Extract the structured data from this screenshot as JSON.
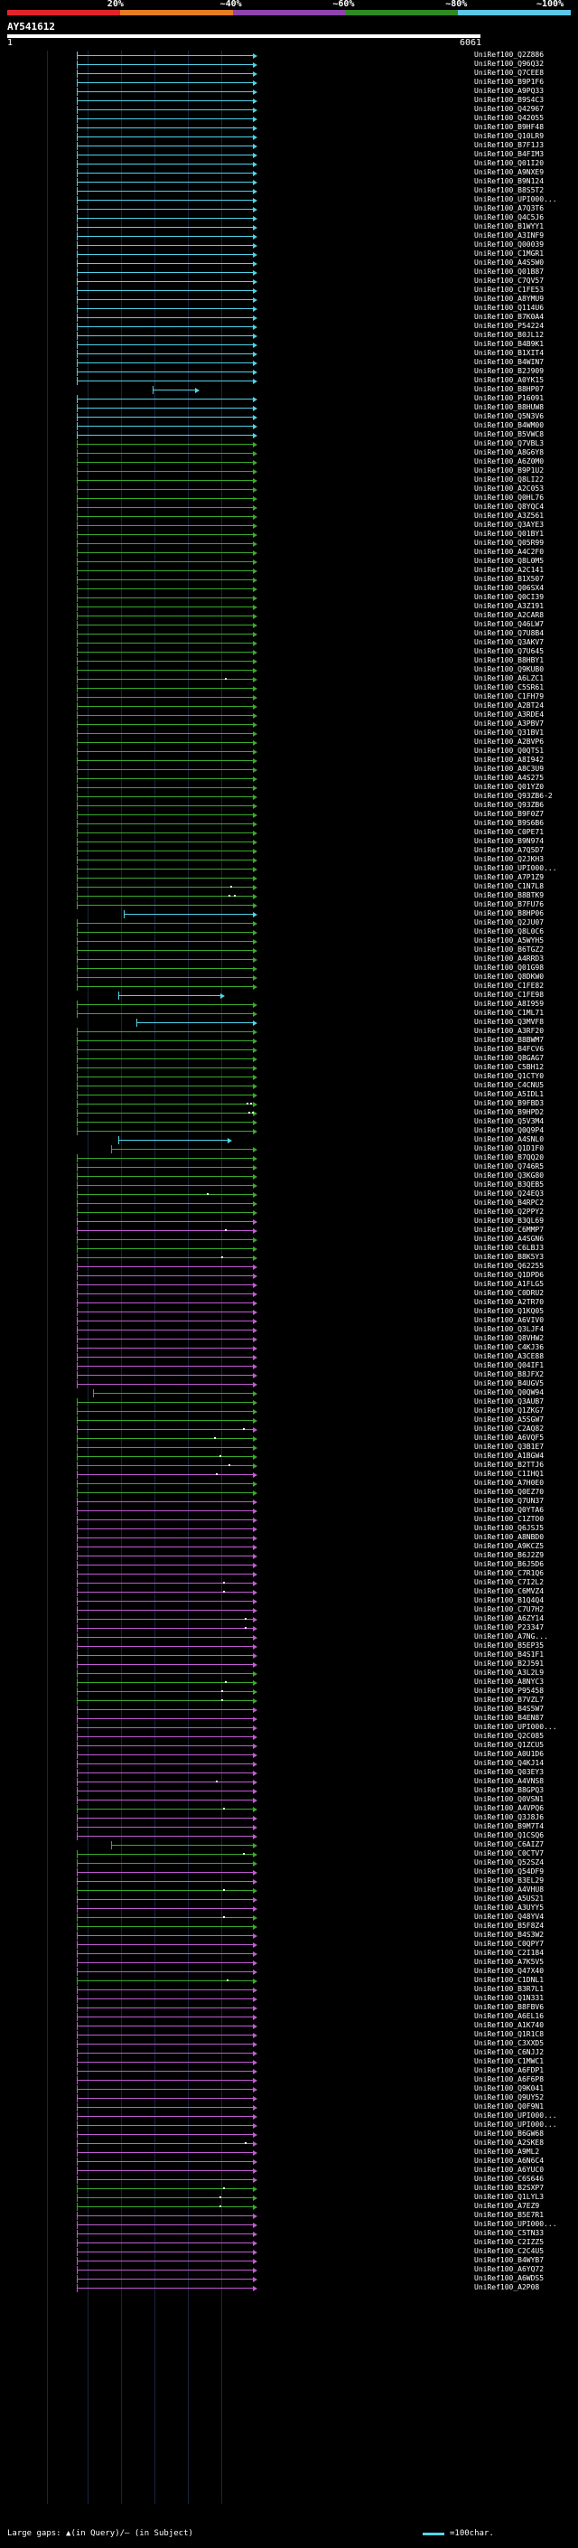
{
  "scale": {
    "labels": [
      "20%",
      "~40%",
      "~60%",
      "~80%",
      "~100%"
    ],
    "colors": [
      "#e3232a",
      "#e67e22",
      "#8e44ad",
      "#2e8b22",
      "#5bc8e6"
    ]
  },
  "query": {
    "id": "AY541612",
    "start": "1",
    "end": "6061"
  },
  "colors": {
    "cyan": "#4fd3e6",
    "green": "#3aab2b",
    "magenta": "#c35bd3"
  },
  "hits": [
    {
      "id": "UniRef100_Q2Z886",
      "c": "cyan"
    },
    {
      "id": "UniRef100_Q96Q32",
      "c": "cyan"
    },
    {
      "id": "UniRef100_Q7CEE8",
      "c": "cyan"
    },
    {
      "id": "UniRef100_B9P1F6",
      "c": "cyan"
    },
    {
      "id": "UniRef100_A9PQ33",
      "c": "cyan"
    },
    {
      "id": "UniRef100_B9S4C3",
      "c": "cyan"
    },
    {
      "id": "UniRef100_Q42967",
      "c": "cyan"
    },
    {
      "id": "UniRef100_Q42055",
      "c": "cyan"
    },
    {
      "id": "UniRef100_B9HF48",
      "c": "cyan"
    },
    {
      "id": "UniRef100_Q10LR9",
      "c": "cyan"
    },
    {
      "id": "UniRef100_B7F1J3",
      "c": "cyan"
    },
    {
      "id": "UniRef100_B4FIM3",
      "c": "cyan"
    },
    {
      "id": "UniRef100_Q01I20",
      "c": "cyan"
    },
    {
      "id": "UniRef100_A9NXE9",
      "c": "cyan"
    },
    {
      "id": "UniRef100_B9N124",
      "c": "cyan"
    },
    {
      "id": "UniRef100_B8S5T2",
      "c": "cyan"
    },
    {
      "id": "UniRef100_UPI000...",
      "c": "cyan"
    },
    {
      "id": "UniRef100_A7Q3T6",
      "c": "cyan"
    },
    {
      "id": "UniRef100_Q4C5J6",
      "c": "cyan"
    },
    {
      "id": "UniRef100_B1WYY1",
      "c": "cyan"
    },
    {
      "id": "UniRef100_A3INF9",
      "c": "cyan"
    },
    {
      "id": "UniRef100_Q00039",
      "c": "cyan"
    },
    {
      "id": "UniRef100_C1MGR1",
      "c": "cyan"
    },
    {
      "id": "UniRef100_A4S5W0",
      "c": "cyan"
    },
    {
      "id": "UniRef100_Q01B87",
      "c": "cyan"
    },
    {
      "id": "UniRef100_C7QV57",
      "c": "cyan"
    },
    {
      "id": "UniRef100_C1FE53",
      "c": "cyan"
    },
    {
      "id": "UniRef100_A8YMU9",
      "c": "cyan"
    },
    {
      "id": "UniRef100_Q114U6",
      "c": "cyan"
    },
    {
      "id": "UniRef100_B7K0A4",
      "c": "cyan"
    },
    {
      "id": "UniRef100_P54224",
      "c": "cyan"
    },
    {
      "id": "UniRef100_B0JL12",
      "c": "cyan"
    },
    {
      "id": "UniRef100_B4B9K1",
      "c": "cyan"
    },
    {
      "id": "UniRef100_B1XIT4",
      "c": "cyan"
    },
    {
      "id": "UniRef100_B4WIN7",
      "c": "cyan"
    },
    {
      "id": "UniRef100_B2J909",
      "c": "cyan"
    },
    {
      "id": "UniRef100_A0YK15",
      "c": "cyan"
    },
    {
      "id": "UniRef100_B8HP07",
      "c": "cyan",
      "s": 0.42,
      "e": 0.68
    },
    {
      "id": "UniRef100_P16091",
      "c": "cyan"
    },
    {
      "id": "UniRef100_B8HUW8",
      "c": "cyan"
    },
    {
      "id": "UniRef100_Q5N3V6",
      "c": "cyan"
    },
    {
      "id": "UniRef100_B4WM00",
      "c": "cyan"
    },
    {
      "id": "UniRef100_B5VWC8",
      "c": "cyan"
    },
    {
      "id": "UniRef100_Q7VBL3",
      "c": "green"
    },
    {
      "id": "UniRef100_A8G6Y8",
      "c": "green"
    },
    {
      "id": "UniRef100_A6Z0M0",
      "c": "green"
    },
    {
      "id": "UniRef100_B9P1U2",
      "c": "green"
    },
    {
      "id": "UniRef100_Q8LI22",
      "c": "green"
    },
    {
      "id": "UniRef100_A2C053",
      "c": "green"
    },
    {
      "id": "UniRef100_Q0HL76",
      "c": "green"
    },
    {
      "id": "UniRef100_Q8YQC4",
      "c": "green"
    },
    {
      "id": "UniRef100_A3Z561",
      "c": "green"
    },
    {
      "id": "UniRef100_Q3AYE3",
      "c": "green"
    },
    {
      "id": "UniRef100_Q01BY1",
      "c": "green"
    },
    {
      "id": "UniRef100_Q05R99",
      "c": "green"
    },
    {
      "id": "UniRef100_A4C2F0",
      "c": "green"
    },
    {
      "id": "UniRef100_Q8L0M5",
      "c": "green"
    },
    {
      "id": "UniRef100_A2C141",
      "c": "green"
    },
    {
      "id": "UniRef100_B1X507",
      "c": "green"
    },
    {
      "id": "UniRef100_Q06SX4",
      "c": "green"
    },
    {
      "id": "UniRef100_Q0CI39",
      "c": "green"
    },
    {
      "id": "UniRef100_A3Z191",
      "c": "green"
    },
    {
      "id": "UniRef100_A2CAR8",
      "c": "green"
    },
    {
      "id": "UniRef100_Q46LW7",
      "c": "green"
    },
    {
      "id": "UniRef100_Q7U8B4",
      "c": "green"
    },
    {
      "id": "UniRef100_Q3AKV7",
      "c": "green"
    },
    {
      "id": "UniRef100_Q7U645",
      "c": "green"
    },
    {
      "id": "UniRef100_B8HBY1",
      "c": "green"
    },
    {
      "id": "UniRef100_Q9KUB0",
      "c": "green"
    },
    {
      "id": "UniRef100_A6LZC1",
      "c": "green",
      "d": [
        0.82
      ]
    },
    {
      "id": "UniRef100_C5SR61",
      "c": "green"
    },
    {
      "id": "UniRef100_C1FH79",
      "c": "green"
    },
    {
      "id": "UniRef100_A2BT24",
      "c": "green"
    },
    {
      "id": "UniRef100_A3RDE4",
      "c": "green"
    },
    {
      "id": "UniRef100_A3PBV7",
      "c": "green"
    },
    {
      "id": "UniRef100_Q31BV1",
      "c": "green"
    },
    {
      "id": "UniRef100_A2BVP6",
      "c": "green"
    },
    {
      "id": "UniRef100_Q0QTS1",
      "c": "green"
    },
    {
      "id": "UniRef100_A8I942",
      "c": "green"
    },
    {
      "id": "UniRef100_A8C3U9",
      "c": "green"
    },
    {
      "id": "UniRef100_A4S275",
      "c": "green"
    },
    {
      "id": "UniRef100_Q01YZ0",
      "c": "green"
    },
    {
      "id": "UniRef100_Q93ZB6-2",
      "c": "green"
    },
    {
      "id": "UniRef100_Q93ZB6",
      "c": "green"
    },
    {
      "id": "UniRef100_B9F0Z7",
      "c": "green"
    },
    {
      "id": "UniRef100_B9S6B6",
      "c": "green"
    },
    {
      "id": "UniRef100_C0PE71",
      "c": "green"
    },
    {
      "id": "UniRef100_B9N974",
      "c": "green"
    },
    {
      "id": "UniRef100_A7Q5D7",
      "c": "green"
    },
    {
      "id": "UniRef100_Q2JKH3",
      "c": "green"
    },
    {
      "id": "UniRef100_UPI000...",
      "c": "green"
    },
    {
      "id": "UniRef100_A7P1Z9",
      "c": "green"
    },
    {
      "id": "UniRef100_C1N7L8",
      "c": "green",
      "d": [
        0.85
      ]
    },
    {
      "id": "UniRef100_B8BTK9",
      "c": "green",
      "d": [
        0.84,
        0.87
      ]
    },
    {
      "id": "UniRef100_B7FU76",
      "c": "green"
    },
    {
      "id": "UniRef100_B8HP06",
      "c": "cyan",
      "s": 0.26
    },
    {
      "id": "UniRef100_Q2JU07",
      "c": "green"
    },
    {
      "id": "UniRef100_Q8L0C6",
      "c": "green"
    },
    {
      "id": "UniRef100_A5WYH5",
      "c": "green"
    },
    {
      "id": "UniRef100_B6TGZ2",
      "c": "green"
    },
    {
      "id": "UniRef100_A4RRD3",
      "c": "green"
    },
    {
      "id": "UniRef100_Q01G98",
      "c": "green"
    },
    {
      "id": "UniRef100_Q8DKW0",
      "c": "green"
    },
    {
      "id": "UniRef100_C1FE82",
      "c": "green"
    },
    {
      "id": "UniRef100_C1FE98",
      "c": "cyan",
      "s": 0.23,
      "e": 0.82
    },
    {
      "id": "UniRef100_A8I959",
      "c": "green"
    },
    {
      "id": "UniRef100_C1ML71",
      "c": "green"
    },
    {
      "id": "UniRef100_Q3MVF8",
      "c": "cyan",
      "s": 0.33
    },
    {
      "id": "UniRef100_A3RF20",
      "c": "green"
    },
    {
      "id": "UniRef100_B8BWM7",
      "c": "green"
    },
    {
      "id": "UniRef100_B4FCV6",
      "c": "green"
    },
    {
      "id": "UniRef100_Q8GAG7",
      "c": "green"
    },
    {
      "id": "UniRef100_C5BH12",
      "c": "green"
    },
    {
      "id": "UniRef100_Q1CTY0",
      "c": "green"
    },
    {
      "id": "UniRef100_C4CNU5",
      "c": "green"
    },
    {
      "id": "UniRef100_A5IDL1",
      "c": "green"
    },
    {
      "id": "UniRef100_B9FBD3",
      "c": "green",
      "d": [
        0.94,
        0.96
      ]
    },
    {
      "id": "UniRef100_B9HPD2",
      "c": "green",
      "d": [
        0.95,
        0.97
      ]
    },
    {
      "id": "UniRef100_Q5V3M4",
      "c": "green"
    },
    {
      "id": "UniRef100_Q0Q9P4",
      "c": "green"
    },
    {
      "id": "UniRef100_A4SNL0",
      "c": "cyan",
      "s": 0.23,
      "e": 0.86
    },
    {
      "id": "UniRef100_Q1D1F0",
      "c": "green",
      "s": 0.19
    },
    {
      "id": "UniRef100_B7QQ20",
      "c": "green"
    },
    {
      "id": "UniRef100_Q746R5",
      "c": "green"
    },
    {
      "id": "UniRef100_Q3KG80",
      "c": "green"
    },
    {
      "id": "UniRef100_B3QEB5",
      "c": "green"
    },
    {
      "id": "UniRef100_Q24EQ3",
      "c": "green",
      "d": [
        0.72
      ]
    },
    {
      "id": "UniRef100_B4RPC2",
      "c": "green"
    },
    {
      "id": "UniRef100_Q2PPY2",
      "c": "green"
    },
    {
      "id": "UniRef100_B3QL69",
      "c": "magenta"
    },
    {
      "id": "UniRef100_C6MMP7",
      "c": "magenta",
      "d": [
        0.82
      ]
    },
    {
      "id": "UniRef100_A4SGN6",
      "c": "green"
    },
    {
      "id": "UniRef100_C6LBJ3",
      "c": "green"
    },
    {
      "id": "UniRef100_B8K5Y3",
      "c": "green",
      "d": [
        0.8
      ]
    },
    {
      "id": "UniRef100_Q62255",
      "c": "magenta"
    },
    {
      "id": "UniRef100_Q1DPD6",
      "c": "magenta"
    },
    {
      "id": "UniRef100_A1FLG5",
      "c": "magenta"
    },
    {
      "id": "UniRef100_C0DRU2",
      "c": "magenta"
    },
    {
      "id": "UniRef100_A2TR70",
      "c": "magenta"
    },
    {
      "id": "UniRef100_Q1KQ05",
      "c": "magenta"
    },
    {
      "id": "UniRef100_A6VIV0",
      "c": "magenta"
    },
    {
      "id": "UniRef100_Q3LJF4",
      "c": "magenta"
    },
    {
      "id": "UniRef100_Q8VHW2",
      "c": "magenta"
    },
    {
      "id": "UniRef100_C4KJ36",
      "c": "magenta"
    },
    {
      "id": "UniRef100_A3CE88",
      "c": "magenta"
    },
    {
      "id": "UniRef100_Q04IF1",
      "c": "magenta"
    },
    {
      "id": "UniRef100_B8JFX2",
      "c": "magenta"
    },
    {
      "id": "UniRef100_B4UGV5",
      "c": "magenta"
    },
    {
      "id": "UniRef100_Q0QW94",
      "c": "green",
      "s": 0.09
    },
    {
      "id": "UniRef100_Q3AUB7",
      "c": "green"
    },
    {
      "id": "UniRef100_Q1ZKG7",
      "c": "green"
    },
    {
      "id": "UniRef100_A5SGW7",
      "c": "green"
    },
    {
      "id": "UniRef100_C2AQ82",
      "c": "magenta",
      "d": [
        0.92
      ]
    },
    {
      "id": "UniRef100_A6VQF5",
      "c": "green",
      "d": [
        0.76
      ]
    },
    {
      "id": "UniRef100_Q3B1E7",
      "c": "green"
    },
    {
      "id": "UniRef100_A1BGW4",
      "c": "green",
      "d": [
        0.79
      ]
    },
    {
      "id": "UniRef100_B2TTJ6",
      "c": "green",
      "d": [
        0.84
      ]
    },
    {
      "id": "UniRef100_C1IHQ1",
      "c": "magenta",
      "d": [
        0.77
      ]
    },
    {
      "id": "UniRef100_A7H0E0",
      "c": "green"
    },
    {
      "id": "UniRef100_Q0EZ70",
      "c": "green"
    },
    {
      "id": "UniRef100_Q7UN37",
      "c": "magenta"
    },
    {
      "id": "UniRef100_Q0YTA6",
      "c": "magenta"
    },
    {
      "id": "UniRef100_C1ZTO0",
      "c": "magenta"
    },
    {
      "id": "UniRef100_Q6JSJ5",
      "c": "magenta"
    },
    {
      "id": "UniRef100_A8NBD0",
      "c": "magenta"
    },
    {
      "id": "UniRef100_A9KCZ5",
      "c": "magenta"
    },
    {
      "id": "UniRef100_B6J2Z9",
      "c": "magenta"
    },
    {
      "id": "UniRef100_B6J5D6",
      "c": "magenta"
    },
    {
      "id": "UniRef100_C7R1Q6",
      "c": "magenta"
    },
    {
      "id": "UniRef100_C7I2L2",
      "c": "magenta",
      "d": [
        0.81
      ]
    },
    {
      "id": "UniRef100_C6MVZ4",
      "c": "magenta",
      "d": [
        0.81
      ]
    },
    {
      "id": "UniRef100_B1Q4Q4",
      "c": "magenta"
    },
    {
      "id": "UniRef100_C7U7H2",
      "c": "magenta"
    },
    {
      "id": "UniRef100_A6ZY14",
      "c": "magenta",
      "d": [
        0.93
      ]
    },
    {
      "id": "UniRef100_P23347",
      "c": "magenta",
      "d": [
        0.93
      ]
    },
    {
      "id": "UniRef100_A7NG...",
      "c": "magenta"
    },
    {
      "id": "UniRef100_B5EP35",
      "c": "magenta"
    },
    {
      "id": "UniRef100_B4S1F1",
      "c": "magenta"
    },
    {
      "id": "UniRef100_B2J591",
      "c": "magenta"
    },
    {
      "id": "UniRef100_A3L2L9",
      "c": "green"
    },
    {
      "id": "UniRef100_A8NYC3",
      "c": "green",
      "d": [
        0.82
      ]
    },
    {
      "id": "UniRef100_P95458",
      "c": "green",
      "d": [
        0.8
      ]
    },
    {
      "id": "UniRef100_B7VZL7",
      "c": "green",
      "d": [
        0.8
      ]
    },
    {
      "id": "UniRef100_B4S5W7",
      "c": "magenta"
    },
    {
      "id": "UniRef100_B4EN87",
      "c": "magenta"
    },
    {
      "id": "UniRef100_UPI000...",
      "c": "magenta"
    },
    {
      "id": "UniRef100_Q2C085",
      "c": "magenta"
    },
    {
      "id": "UniRef100_Q1ZCU5",
      "c": "magenta"
    },
    {
      "id": "UniRef100_A0U1D6",
      "c": "magenta"
    },
    {
      "id": "UniRef100_Q4KJ14",
      "c": "magenta"
    },
    {
      "id": "UniRef100_Q03EY3",
      "c": "magenta"
    },
    {
      "id": "UniRef100_A4VNS8",
      "c": "magenta",
      "d": [
        0.77
      ]
    },
    {
      "id": "UniRef100_B8GPQ3",
      "c": "magenta"
    },
    {
      "id": "UniRef100_Q0VSN1",
      "c": "magenta"
    },
    {
      "id": "UniRef100_A4VPQ6",
      "c": "green",
      "d": [
        0.81
      ]
    },
    {
      "id": "UniRef100_Q3J8J6",
      "c": "magenta"
    },
    {
      "id": "UniRef100_B9M7T4",
      "c": "magenta"
    },
    {
      "id": "UniRef100_Q1CSQ6",
      "c": "magenta"
    },
    {
      "id": "UniRef100_C6AIZ7",
      "c": "green",
      "s": 0.19
    },
    {
      "id": "UniRef100_C0CTV7",
      "c": "green",
      "d": [
        0.92
      ]
    },
    {
      "id": "UniRef100_Q52SZ4",
      "c": "green"
    },
    {
      "id": "UniRef100_Q54DF9",
      "c": "magenta"
    },
    {
      "id": "UniRef100_B3EL29",
      "c": "magenta"
    },
    {
      "id": "UniRef100_A4VHU8",
      "c": "green",
      "d": [
        0.81
      ]
    },
    {
      "id": "UniRef100_A5US21",
      "c": "magenta"
    },
    {
      "id": "UniRef100_A3UYY5",
      "c": "magenta"
    },
    {
      "id": "UniRef100_Q48YV4",
      "c": "green",
      "d": [
        0.81
      ]
    },
    {
      "id": "UniRef100_B5F8Z4",
      "c": "green"
    },
    {
      "id": "UniRef100_B4S3W2",
      "c": "magenta"
    },
    {
      "id": "UniRef100_C0QPY7",
      "c": "magenta"
    },
    {
      "id": "UniRef100_C2I184",
      "c": "magenta"
    },
    {
      "id": "UniRef100_A7K5V5",
      "c": "magenta"
    },
    {
      "id": "UniRef100_Q47X40",
      "c": "magenta"
    },
    {
      "id": "UniRef100_C1DNL1",
      "c": "green",
      "d": [
        0.83
      ]
    },
    {
      "id": "UniRef100_B3R7L1",
      "c": "magenta"
    },
    {
      "id": "UniRef100_Q1N331",
      "c": "magenta"
    },
    {
      "id": "UniRef100_B8FBV6",
      "c": "magenta"
    },
    {
      "id": "UniRef100_A6EL16",
      "c": "magenta"
    },
    {
      "id": "UniRef100_A1K740",
      "c": "magenta"
    },
    {
      "id": "UniRef100_Q1R1C8",
      "c": "magenta"
    },
    {
      "id": "UniRef100_C3XXD5",
      "c": "magenta"
    },
    {
      "id": "UniRef100_C6NJJ2",
      "c": "magenta"
    },
    {
      "id": "UniRef100_C1MWC1",
      "c": "magenta"
    },
    {
      "id": "UniRef100_A6FDP1",
      "c": "magenta"
    },
    {
      "id": "UniRef100_A6F6P8",
      "c": "magenta"
    },
    {
      "id": "UniRef100_Q9K041",
      "c": "magenta"
    },
    {
      "id": "UniRef100_Q9UY52",
      "c": "magenta"
    },
    {
      "id": "UniRef100_Q0F9N1",
      "c": "magenta"
    },
    {
      "id": "UniRef100_UPI000...",
      "c": "magenta"
    },
    {
      "id": "UniRef100_UPI000...",
      "c": "magenta"
    },
    {
      "id": "UniRef100_B6GW68",
      "c": "magenta"
    },
    {
      "id": "UniRef100_A2SKE8",
      "c": "magenta",
      "d": [
        0.93
      ]
    },
    {
      "id": "UniRef100_A9ML2",
      "c": "magenta"
    },
    {
      "id": "UniRef100_A6N6C4",
      "c": "magenta"
    },
    {
      "id": "UniRef100_A6YUC0",
      "c": "magenta"
    },
    {
      "id": "UniRef100_C6S646",
      "c": "magenta"
    },
    {
      "id": "UniRef100_B2SXP7",
      "c": "green",
      "d": [
        0.81
      ]
    },
    {
      "id": "UniRef100_Q1LYL3",
      "c": "green",
      "d": [
        0.79
      ]
    },
    {
      "id": "UniRef100_A7EZ9",
      "c": "green",
      "d": [
        0.79
      ]
    },
    {
      "id": "UniRef100_B5E7R1",
      "c": "magenta"
    },
    {
      "id": "UniRef100_UPI000...",
      "c": "magenta"
    },
    {
      "id": "UniRef100_C5TN33",
      "c": "magenta"
    },
    {
      "id": "UniRef100_C2IZZ5",
      "c": "magenta"
    },
    {
      "id": "UniRef100_C2C4U5",
      "c": "magenta"
    },
    {
      "id": "UniRef100_B4WYB7",
      "c": "magenta"
    },
    {
      "id": "UniRef100_A6YQ72",
      "c": "magenta"
    },
    {
      "id": "UniRef100_A6WDS5",
      "c": "magenta"
    },
    {
      "id": "UniRef100_A2P08",
      "c": "magenta"
    }
  ],
  "footer": {
    "large_gaps": "Large gaps: ▲(in Query)/– (in Subject)",
    "legend": "=100char."
  }
}
